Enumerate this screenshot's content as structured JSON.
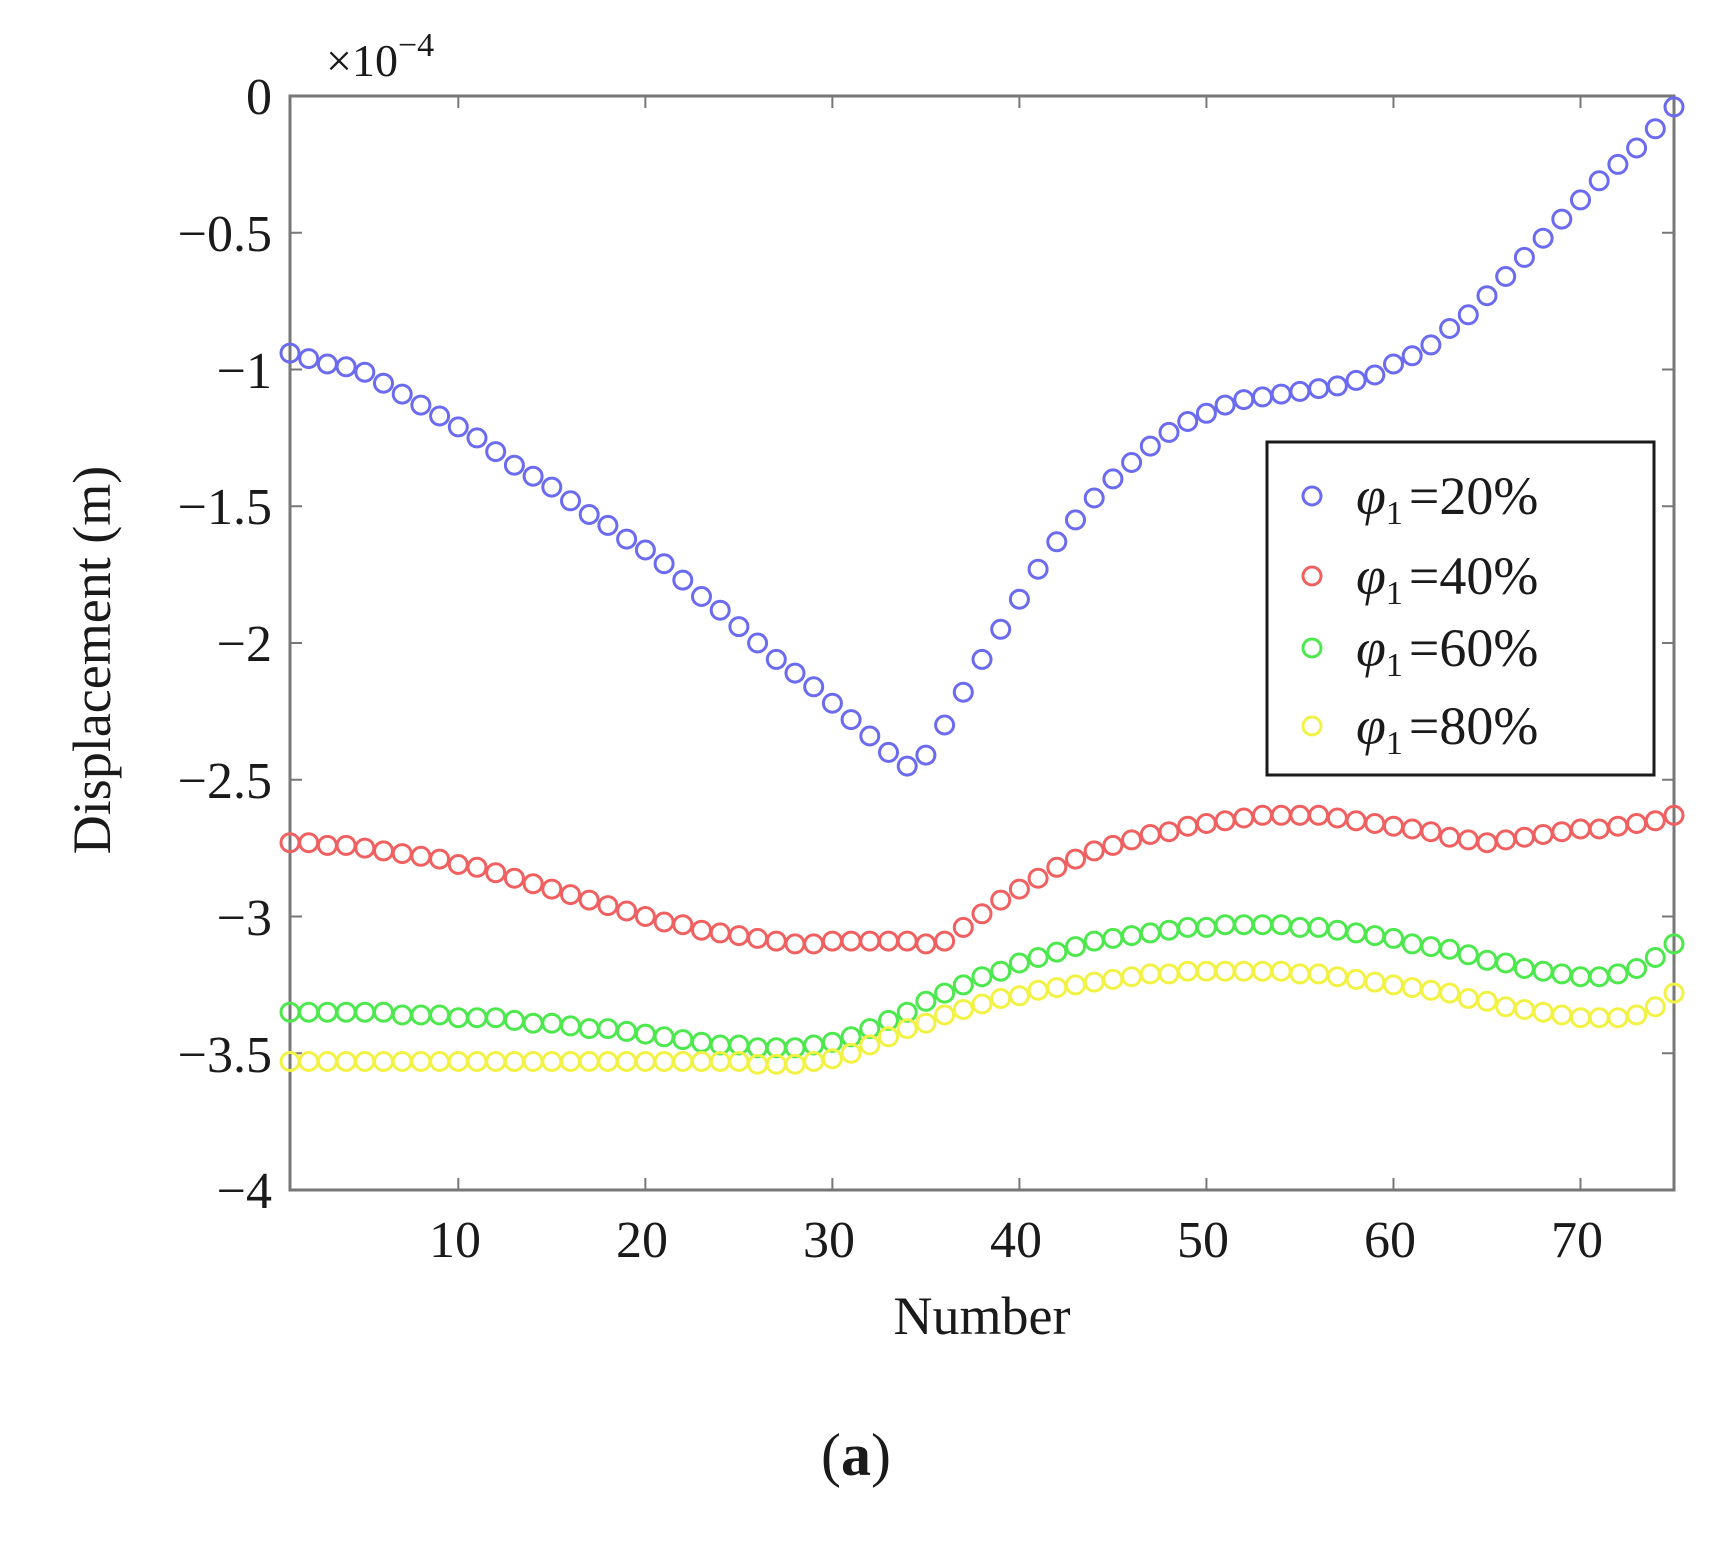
{
  "chart_data": {
    "type": "scatter",
    "xlabel": "Number",
    "ylabel": "Displacement (m)",
    "scale_factor": {
      "base": "×10",
      "exponent": "−4"
    },
    "xlim": [
      1,
      75
    ],
    "ylim": [
      -4,
      0
    ],
    "xticks": [
      10,
      20,
      30,
      40,
      50,
      60,
      70
    ],
    "xtick_labels": [
      "10",
      "20",
      "30",
      "40",
      "50",
      "60",
      "70"
    ],
    "yticks": [
      0,
      -0.5,
      -1,
      -1.5,
      -2,
      -2.5,
      -3,
      -3.5,
      -4
    ],
    "ytick_labels": [
      "0",
      "−0.5",
      "−1",
      "−1.5",
      "−2",
      "−2.5",
      "−3",
      "−3.5",
      "−4"
    ],
    "legend_placement": "right-center",
    "x": [
      1,
      2,
      3,
      4,
      5,
      6,
      7,
      8,
      9,
      10,
      11,
      12,
      13,
      14,
      15,
      16,
      17,
      18,
      19,
      20,
      21,
      22,
      23,
      24,
      25,
      26,
      27,
      28,
      29,
      30,
      31,
      32,
      33,
      34,
      35,
      36,
      37,
      38,
      39,
      40,
      41,
      42,
      43,
      44,
      45,
      46,
      47,
      48,
      49,
      50,
      51,
      52,
      53,
      54,
      55,
      56,
      57,
      58,
      59,
      60,
      61,
      62,
      63,
      64,
      65,
      66,
      67,
      68,
      69,
      70,
      71,
      72,
      73,
      74,
      75
    ],
    "series": [
      {
        "name": "=20%",
        "symbol": "φ",
        "subscript": "1",
        "color": "#6b6bf0",
        "values": [
          -0.94,
          -0.96,
          -0.98,
          -0.99,
          -1.01,
          -1.05,
          -1.09,
          -1.13,
          -1.17,
          -1.21,
          -1.25,
          -1.3,
          -1.35,
          -1.39,
          -1.43,
          -1.48,
          -1.53,
          -1.57,
          -1.62,
          -1.66,
          -1.71,
          -1.77,
          -1.83,
          -1.88,
          -1.94,
          -2.0,
          -2.06,
          -2.11,
          -2.16,
          -2.22,
          -2.28,
          -2.34,
          -2.4,
          -2.45,
          -2.41,
          -2.3,
          -2.18,
          -2.06,
          -1.95,
          -1.84,
          -1.73,
          -1.63,
          -1.55,
          -1.47,
          -1.4,
          -1.34,
          -1.28,
          -1.23,
          -1.19,
          -1.16,
          -1.13,
          -1.11,
          -1.1,
          -1.09,
          -1.08,
          -1.07,
          -1.06,
          -1.04,
          -1.02,
          -0.98,
          -0.95,
          -0.91,
          -0.85,
          -0.8,
          -0.73,
          -0.66,
          -0.59,
          -0.52,
          -0.45,
          -0.38,
          -0.31,
          -0.25,
          -0.19,
          -0.12,
          -0.04
        ]
      },
      {
        "name": "=40%",
        "symbol": "φ",
        "subscript": "1",
        "color": "#f06060",
        "values": [
          -2.73,
          -2.73,
          -2.74,
          -2.74,
          -2.75,
          -2.76,
          -2.77,
          -2.78,
          -2.79,
          -2.81,
          -2.82,
          -2.84,
          -2.86,
          -2.88,
          -2.9,
          -2.92,
          -2.94,
          -2.96,
          -2.98,
          -3.0,
          -3.02,
          -3.03,
          -3.05,
          -3.06,
          -3.07,
          -3.08,
          -3.09,
          -3.1,
          -3.1,
          -3.09,
          -3.09,
          -3.09,
          -3.09,
          -3.09,
          -3.1,
          -3.09,
          -3.04,
          -2.99,
          -2.94,
          -2.9,
          -2.86,
          -2.82,
          -2.79,
          -2.76,
          -2.74,
          -2.72,
          -2.7,
          -2.69,
          -2.67,
          -2.66,
          -2.65,
          -2.64,
          -2.63,
          -2.63,
          -2.63,
          -2.63,
          -2.64,
          -2.65,
          -2.66,
          -2.67,
          -2.68,
          -2.69,
          -2.71,
          -2.72,
          -2.73,
          -2.72,
          -2.71,
          -2.7,
          -2.69,
          -2.68,
          -2.68,
          -2.67,
          -2.66,
          -2.65,
          -2.63
        ]
      },
      {
        "name": "=60%",
        "symbol": "φ",
        "subscript": "1",
        "color": "#4de84d",
        "values": [
          -3.35,
          -3.35,
          -3.35,
          -3.35,
          -3.35,
          -3.35,
          -3.36,
          -3.36,
          -3.36,
          -3.37,
          -3.37,
          -3.37,
          -3.38,
          -3.39,
          -3.39,
          -3.4,
          -3.41,
          -3.41,
          -3.42,
          -3.43,
          -3.44,
          -3.45,
          -3.46,
          -3.47,
          -3.47,
          -3.48,
          -3.48,
          -3.48,
          -3.47,
          -3.46,
          -3.44,
          -3.41,
          -3.38,
          -3.35,
          -3.31,
          -3.28,
          -3.25,
          -3.22,
          -3.2,
          -3.17,
          -3.15,
          -3.13,
          -3.11,
          -3.09,
          -3.08,
          -3.07,
          -3.06,
          -3.05,
          -3.04,
          -3.04,
          -3.03,
          -3.03,
          -3.03,
          -3.03,
          -3.04,
          -3.04,
          -3.05,
          -3.06,
          -3.07,
          -3.08,
          -3.1,
          -3.11,
          -3.12,
          -3.14,
          -3.16,
          -3.17,
          -3.19,
          -3.2,
          -3.21,
          -3.22,
          -3.22,
          -3.21,
          -3.19,
          -3.15,
          -3.1
        ]
      },
      {
        "name": "=80%",
        "symbol": "φ",
        "subscript": "1",
        "color": "#f2f244",
        "values": [
          -3.53,
          -3.53,
          -3.53,
          -3.53,
          -3.53,
          -3.53,
          -3.53,
          -3.53,
          -3.53,
          -3.53,
          -3.53,
          -3.53,
          -3.53,
          -3.53,
          -3.53,
          -3.53,
          -3.53,
          -3.53,
          -3.53,
          -3.53,
          -3.53,
          -3.53,
          -3.53,
          -3.53,
          -3.53,
          -3.54,
          -3.54,
          -3.54,
          -3.53,
          -3.52,
          -3.5,
          -3.47,
          -3.44,
          -3.41,
          -3.39,
          -3.36,
          -3.34,
          -3.32,
          -3.3,
          -3.29,
          -3.27,
          -3.26,
          -3.25,
          -3.24,
          -3.23,
          -3.22,
          -3.21,
          -3.21,
          -3.2,
          -3.2,
          -3.2,
          -3.2,
          -3.2,
          -3.2,
          -3.21,
          -3.21,
          -3.22,
          -3.23,
          -3.24,
          -3.25,
          -3.26,
          -3.27,
          -3.28,
          -3.3,
          -3.31,
          -3.33,
          -3.34,
          -3.35,
          -3.36,
          -3.37,
          -3.37,
          -3.37,
          -3.36,
          -3.33,
          -3.28
        ]
      }
    ]
  },
  "caption": {
    "open": "(",
    "letter": "a",
    "close": ")"
  }
}
